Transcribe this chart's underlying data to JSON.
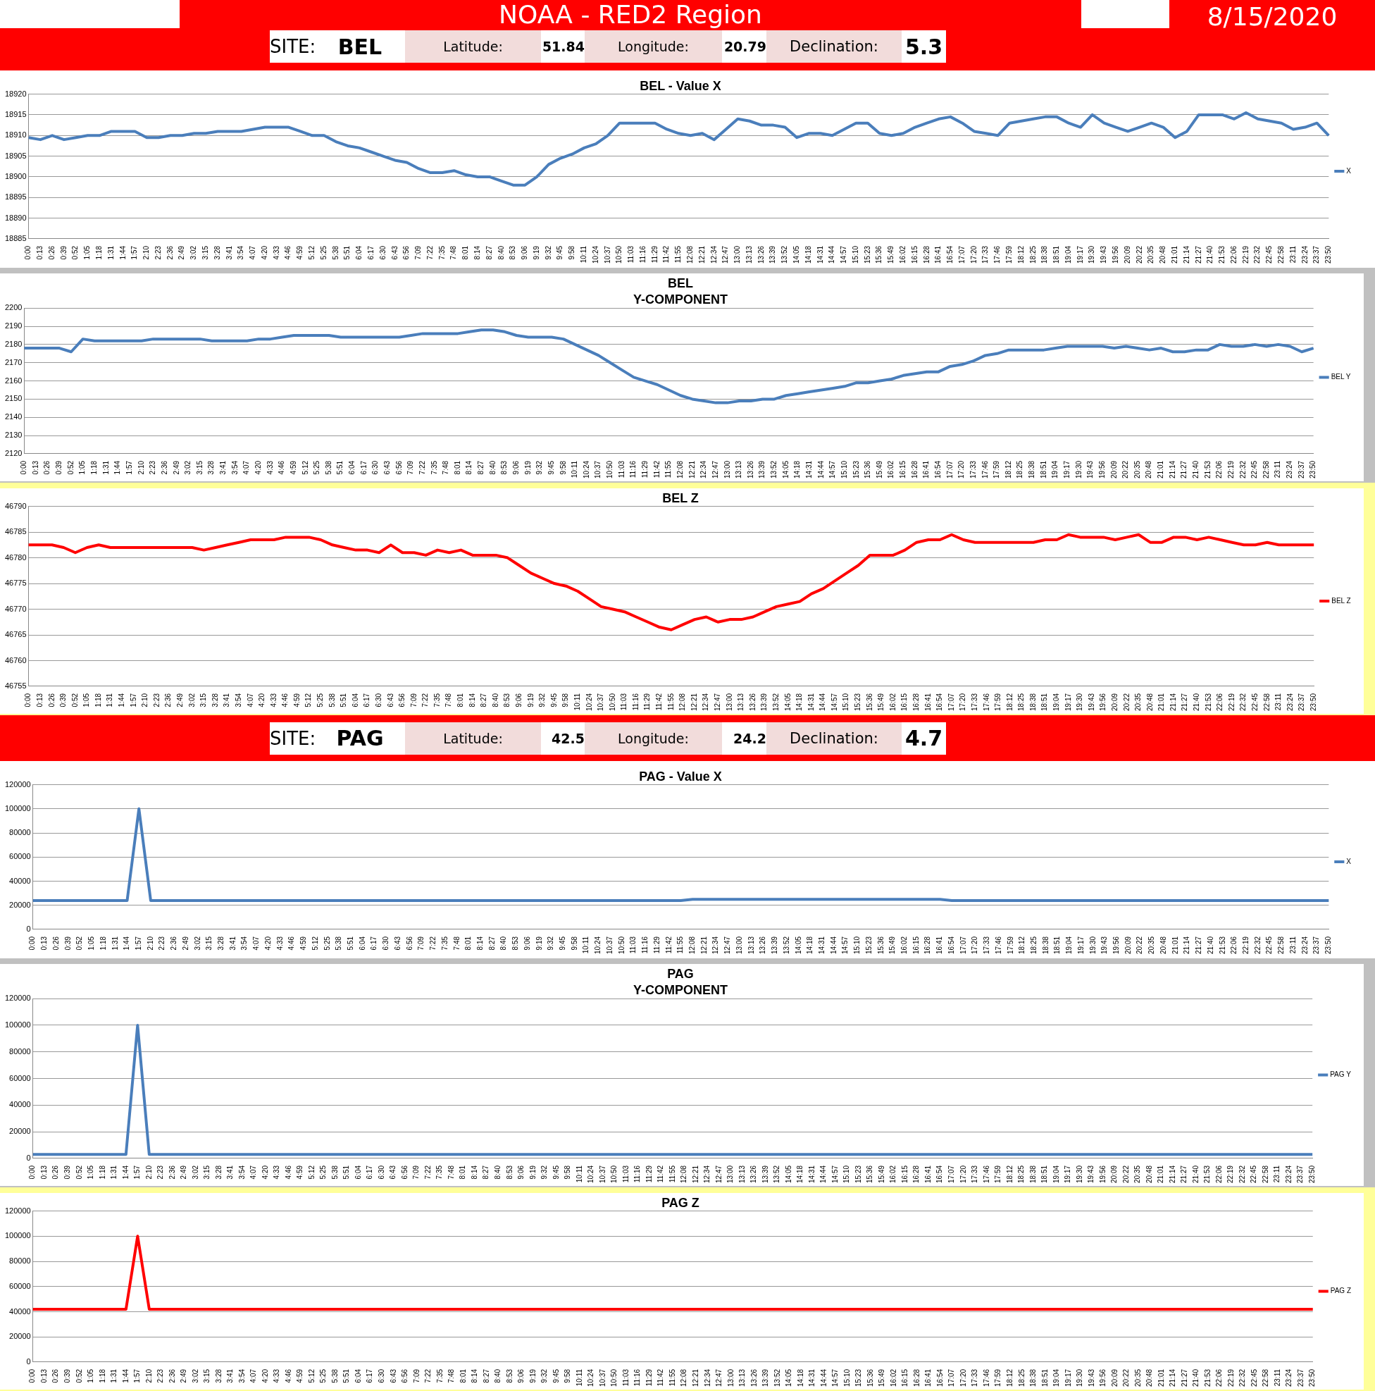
{
  "chart_data": [
    {
      "type": "other",
      "title": "NOAA - RED2 Region",
      "annotations": [
        "8/15/2020",
        "SITE:",
        "BEL",
        "Latitude:",
        "51.84",
        "Longitude:",
        "20.79",
        "Declination:",
        "5.3"
      ]
    },
    {
      "type": "line",
      "title": "BEL - Value X",
      "categories": [
        "0:00",
        "0:13",
        "0:26",
        "0:39",
        "0:52",
        "1:05",
        "1:18",
        "1:31",
        "1:44",
        "1:57",
        "2:10",
        "2:23",
        "2:36",
        "2:49",
        "3:02",
        "3:15",
        "3:28",
        "3:41",
        "3:54",
        "4:07",
        "4:20",
        "4:33",
        "4:46",
        "4:59",
        "5:12",
        "5:25",
        "5:38",
        "5:51",
        "6:04",
        "6:17",
        "6:30",
        "6:43",
        "6:56",
        "7:09",
        "7:22",
        "7:35",
        "7:48",
        "8:01",
        "8:14",
        "8:27",
        "8:40",
        "8:53",
        "9:06",
        "9:19",
        "9:32",
        "9:45",
        "9:58",
        "10:11",
        "10:24",
        "10:37",
        "10:50",
        "11:03",
        "11:16",
        "11:29",
        "11:42",
        "11:55",
        "12:08",
        "12:21",
        "12:34",
        "12:47",
        "13:00",
        "13:13",
        "13:26",
        "13:39",
        "13:52",
        "14:05",
        "14:18",
        "14:31",
        "14:44",
        "14:57",
        "15:10",
        "15:23",
        "15:36",
        "15:49",
        "16:02",
        "16:15",
        "16:28",
        "16:41",
        "16:54",
        "17:07",
        "17:20",
        "17:33",
        "17:46",
        "17:59",
        "18:12",
        "18:25",
        "18:38",
        "18:51",
        "19:04",
        "19:17",
        "19:30",
        "19:43",
        "19:56",
        "20:09",
        "20:22",
        "20:35",
        "20:48",
        "21:01",
        "21:14",
        "21:27",
        "21:40",
        "21:53",
        "22:06",
        "22:19",
        "22:32",
        "22:45",
        "22:58",
        "23:11",
        "23:24",
        "23:37",
        "23:50"
      ],
      "series": [
        {
          "name": "X",
          "color": "#4a7ebb",
          "values": [
            18909.5,
            18909,
            18910,
            18909,
            18909.5,
            18910,
            18910,
            18911,
            18911,
            18911,
            18909.5,
            18909.5,
            18910,
            18910,
            18910.5,
            18910.5,
            18911,
            18911,
            18911,
            18911.5,
            18912,
            18912,
            18912,
            18911,
            18910,
            18910,
            18908.5,
            18907.5,
            18907,
            18906,
            18905,
            18904,
            18903.5,
            18902,
            18901,
            18901,
            18901.5,
            18900.5,
            18900,
            18900,
            18899,
            18898,
            18898,
            18900,
            18903,
            18904.5,
            18905.5,
            18907,
            18908,
            18910,
            18913,
            18913,
            18913,
            18913,
            18911.5,
            18910.5,
            18910,
            18910.5,
            18909,
            18911.5,
            18914,
            18913.5,
            18912.5,
            18912.5,
            18912,
            18909.5,
            18910.5,
            18910.5,
            18910,
            18911.5,
            18913,
            18913,
            18910.5,
            18910,
            18910.5,
            18912,
            18913,
            18914,
            18914.5,
            18913,
            18911,
            18910.5,
            18910,
            18913,
            18913.5,
            18914,
            18914.5,
            18914.5,
            18913,
            18912,
            18915,
            18913,
            18912,
            18911,
            18912,
            18913,
            18912,
            18909.5,
            18911,
            18915,
            18915,
            18915,
            18914,
            18915.5,
            18914,
            18913.5,
            18913,
            18911.5,
            18912,
            18913,
            18910
          ]
        }
      ],
      "ylim": [
        18885,
        18920
      ],
      "yticks": [
        18885,
        18890,
        18895,
        18900,
        18905,
        18910,
        18915,
        18920
      ],
      "grid": "y",
      "legend": "right",
      "marker": "none",
      "line_style": "solid"
    },
    {
      "type": "line",
      "title": "BEL",
      "subtitle": "Y-COMPONENT",
      "categories": [
        "0:00",
        "0:13",
        "0:26",
        "0:39",
        "0:52",
        "1:05",
        "1:18",
        "1:31",
        "1:44",
        "1:57",
        "2:10",
        "2:23",
        "2:36",
        "2:49",
        "3:02",
        "3:15",
        "3:28",
        "3:41",
        "3:54",
        "4:07",
        "4:20",
        "4:33",
        "4:46",
        "4:59",
        "5:12",
        "5:25",
        "5:38",
        "5:51",
        "6:04",
        "6:17",
        "6:30",
        "6:43",
        "6:56",
        "7:09",
        "7:22",
        "7:35",
        "7:48",
        "8:01",
        "8:14",
        "8:27",
        "8:40",
        "8:53",
        "9:06",
        "9:19",
        "9:32",
        "9:45",
        "9:58",
        "10:11",
        "10:24",
        "10:37",
        "10:50",
        "11:03",
        "11:16",
        "11:29",
        "11:42",
        "11:55",
        "12:08",
        "12:21",
        "12:34",
        "12:47",
        "13:00",
        "13:13",
        "13:26",
        "13:39",
        "13:52",
        "14:05",
        "14:18",
        "14:31",
        "14:44",
        "14:57",
        "15:10",
        "15:23",
        "15:36",
        "15:49",
        "16:02",
        "16:15",
        "16:28",
        "16:41",
        "16:54",
        "17:07",
        "17:20",
        "17:33",
        "17:46",
        "17:59",
        "18:12",
        "18:25",
        "18:38",
        "18:51",
        "19:04",
        "19:17",
        "19:30",
        "19:43",
        "19:56",
        "20:09",
        "20:22",
        "20:35",
        "20:48",
        "21:01",
        "21:14",
        "21:27",
        "21:40",
        "21:53",
        "22:06",
        "22:19",
        "22:32",
        "22:45",
        "22:58",
        "23:11",
        "23:24",
        "23:37",
        "23:50"
      ],
      "series": [
        {
          "name": "BEL Y",
          "color": "#4a7ebb",
          "values": [
            2178,
            2178,
            2178,
            2178,
            2176,
            2183,
            2182,
            2182,
            2182,
            2182,
            2182,
            2183,
            2183,
            2183,
            2183,
            2183,
            2182,
            2182,
            2182,
            2182,
            2183,
            2183,
            2184,
            2185,
            2185,
            2185,
            2185,
            2184,
            2184,
            2184,
            2184,
            2184,
            2184,
            2185,
            2186,
            2186,
            2186,
            2186,
            2187,
            2188,
            2188,
            2187,
            2185,
            2184,
            2184,
            2184,
            2183,
            2180,
            2177,
            2174,
            2170,
            2166,
            2162,
            2160,
            2158,
            2155,
            2152,
            2150,
            2149,
            2148,
            2148,
            2149,
            2149,
            2150,
            2150,
            2152,
            2153,
            2154,
            2155,
            2156,
            2157,
            2159,
            2159,
            2160,
            2161,
            2163,
            2164,
            2165,
            2165,
            2168,
            2169,
            2171,
            2174,
            2175,
            2177,
            2177,
            2177,
            2177,
            2178,
            2179,
            2179,
            2179,
            2179,
            2178,
            2179,
            2178,
            2177,
            2178,
            2176,
            2176,
            2177,
            2177,
            2180,
            2179,
            2179,
            2180,
            2179,
            2180,
            2179,
            2176,
            2178
          ]
        }
      ],
      "ylim": [
        2120,
        2200
      ],
      "yticks": [
        2120,
        2130,
        2140,
        2150,
        2160,
        2170,
        2180,
        2190,
        2200
      ],
      "grid": "y",
      "legend": "right",
      "marker": "none",
      "line_style": "solid"
    },
    {
      "type": "line",
      "title": "BEL Z",
      "categories": [
        "0:00",
        "0:13",
        "0:26",
        "0:39",
        "0:52",
        "1:05",
        "1:18",
        "1:31",
        "1:44",
        "1:57",
        "2:10",
        "2:23",
        "2:36",
        "2:49",
        "3:02",
        "3:15",
        "3:28",
        "3:41",
        "3:54",
        "4:07",
        "4:20",
        "4:33",
        "4:46",
        "4:59",
        "5:12",
        "5:25",
        "5:38",
        "5:51",
        "6:04",
        "6:17",
        "6:30",
        "6:43",
        "6:56",
        "7:09",
        "7:22",
        "7:35",
        "7:48",
        "8:01",
        "8:14",
        "8:27",
        "8:40",
        "8:53",
        "9:06",
        "9:19",
        "9:32",
        "9:45",
        "9:58",
        "10:11",
        "10:24",
        "10:37",
        "10:50",
        "11:03",
        "11:16",
        "11:29",
        "11:42",
        "11:55",
        "12:08",
        "12:21",
        "12:34",
        "12:47",
        "13:00",
        "13:13",
        "13:26",
        "13:39",
        "13:52",
        "14:05",
        "14:18",
        "14:31",
        "14:44",
        "14:57",
        "15:10",
        "15:23",
        "15:36",
        "15:49",
        "16:02",
        "16:15",
        "16:28",
        "16:41",
        "16:54",
        "17:07",
        "17:20",
        "17:33",
        "17:46",
        "17:59",
        "18:12",
        "18:25",
        "18:38",
        "18:51",
        "19:04",
        "19:17",
        "19:30",
        "19:43",
        "19:56",
        "20:09",
        "20:22",
        "20:35",
        "20:48",
        "21:01",
        "21:14",
        "21:27",
        "21:40",
        "21:53",
        "22:06",
        "22:19",
        "22:32",
        "22:45",
        "22:58",
        "23:11",
        "23:24",
        "23:37",
        "23:50"
      ],
      "series": [
        {
          "name": "BEL Z",
          "color": "#ff0000",
          "values": [
            46782.5,
            46782.5,
            46782.5,
            46782,
            46781,
            46782,
            46782.5,
            46782,
            46782,
            46782,
            46782,
            46782,
            46782,
            46782,
            46782,
            46781.5,
            46782,
            46782.5,
            46783,
            46783.5,
            46783.5,
            46783.5,
            46784,
            46784,
            46784,
            46783.5,
            46782.5,
            46782,
            46781.5,
            46781.5,
            46781,
            46782.5,
            46781,
            46781,
            46780.5,
            46781.5,
            46781,
            46781.5,
            46780.5,
            46780.5,
            46780.5,
            46780,
            46778.5,
            46777,
            46776,
            46775,
            46774.5,
            46773.5,
            46772,
            46770.5,
            46770,
            46769.5,
            46768.5,
            46767.5,
            46766.5,
            46766,
            46767,
            46768,
            46768.5,
            46767.5,
            46768,
            46768,
            46768.5,
            46769.5,
            46770.5,
            46771,
            46771.5,
            46773,
            46774,
            46775.5,
            46777,
            46778.5,
            46780.5,
            46780.5,
            46780.5,
            46781.5,
            46783,
            46783.5,
            46783.5,
            46784.5,
            46783.5,
            46783,
            46783,
            46783,
            46783,
            46783,
            46783,
            46783.5,
            46783.5,
            46784.5,
            46784,
            46784,
            46784,
            46783.5,
            46784,
            46784.5,
            46783,
            46783,
            46784,
            46784,
            46783.5,
            46784,
            46783.5,
            46783,
            46782.5,
            46782.5,
            46783,
            46782.5,
            46782.5,
            46782.5,
            46782.5
          ]
        }
      ],
      "ylim": [
        46755,
        46790
      ],
      "yticks": [
        46755,
        46760,
        46765,
        46770,
        46775,
        46780,
        46785,
        46790
      ],
      "grid": "y",
      "legend": "right",
      "marker": "none",
      "line_style": "solid"
    },
    {
      "type": "other",
      "annotations": [
        "SITE:",
        "PAG",
        "Latitude:",
        "42.5",
        "Longitude:",
        "24.2",
        "Declination:",
        "4.7"
      ]
    },
    {
      "type": "line",
      "title": "PAG - Value X",
      "categories": [
        "0:00",
        "0:13",
        "0:26",
        "0:39",
        "0:52",
        "1:05",
        "1:18",
        "1:31",
        "1:44",
        "1:57",
        "2:10",
        "2:23",
        "2:36",
        "2:49",
        "3:02",
        "3:15",
        "3:28",
        "3:41",
        "3:54",
        "4:07",
        "4:20",
        "4:33",
        "4:46",
        "4:59",
        "5:12",
        "5:25",
        "5:38",
        "5:51",
        "6:04",
        "6:17",
        "6:30",
        "6:43",
        "6:56",
        "7:09",
        "7:22",
        "7:35",
        "7:48",
        "8:01",
        "8:14",
        "8:27",
        "8:40",
        "8:53",
        "9:06",
        "9:19",
        "9:32",
        "9:45",
        "9:58",
        "10:11",
        "10:24",
        "10:37",
        "10:50",
        "11:03",
        "11:16",
        "11:29",
        "11:42",
        "11:55",
        "12:08",
        "12:21",
        "12:34",
        "12:47",
        "13:00",
        "13:13",
        "13:26",
        "13:39",
        "13:52",
        "14:05",
        "14:18",
        "14:31",
        "14:44",
        "14:57",
        "15:10",
        "15:23",
        "15:36",
        "15:49",
        "16:02",
        "16:15",
        "16:28",
        "16:41",
        "16:54",
        "17:07",
        "17:20",
        "17:33",
        "17:46",
        "17:59",
        "18:12",
        "18:25",
        "18:38",
        "18:51",
        "19:04",
        "19:17",
        "19:30",
        "19:43",
        "19:56",
        "20:09",
        "20:22",
        "20:35",
        "20:48",
        "21:01",
        "21:14",
        "21:27",
        "21:40",
        "21:53",
        "22:06",
        "22:19",
        "22:32",
        "22:45",
        "22:58",
        "23:11",
        "23:24",
        "23:37",
        "23:50"
      ],
      "series": [
        {
          "name": "X",
          "color": "#4a7ebb",
          "values": [
            24000,
            24000,
            24000,
            24000,
            24000,
            24000,
            24000,
            24000,
            24000,
            100000,
            24000,
            24000,
            24000,
            24000,
            24000,
            24000,
            24000,
            24000,
            24000,
            24000,
            24000,
            24000,
            24000,
            24000,
            24000,
            24000,
            24000,
            24000,
            24000,
            24000,
            24000,
            24000,
            24000,
            24000,
            24000,
            24000,
            24000,
            24000,
            24000,
            24000,
            24000,
            24000,
            24000,
            24000,
            24000,
            24000,
            24000,
            24000,
            24000,
            24000,
            24000,
            24000,
            24000,
            24000,
            24000,
            24000,
            25000,
            25000,
            25000,
            25000,
            25000,
            25000,
            25000,
            25000,
            25000,
            25000,
            25000,
            25000,
            25000,
            25000,
            25000,
            25000,
            25000,
            25000,
            25000,
            25000,
            25000,
            25000,
            24000,
            24000,
            24000,
            24000,
            24000,
            24000,
            24000,
            24000,
            24000,
            24000,
            24000,
            24000,
            24000,
            24000,
            24000,
            24000,
            24000,
            24000,
            24000,
            24000,
            24000,
            24000,
            24000,
            24000,
            24000,
            24000,
            24000,
            24000,
            24000,
            24000,
            24000,
            24000,
            24000
          ]
        }
      ],
      "ylim": [
        0,
        120000
      ],
      "yticks": [
        0,
        20000,
        40000,
        60000,
        80000,
        100000,
        120000
      ],
      "grid": "y",
      "legend": "right",
      "marker": "none",
      "line_style": "solid"
    },
    {
      "type": "line",
      "title": "PAG",
      "subtitle": "Y-COMPONENT",
      "categories": [
        "0:00",
        "0:13",
        "0:26",
        "0:39",
        "0:52",
        "1:05",
        "1:18",
        "1:31",
        "1:44",
        "1:57",
        "2:10",
        "2:23",
        "2:36",
        "2:49",
        "3:02",
        "3:15",
        "3:28",
        "3:41",
        "3:54",
        "4:07",
        "4:20",
        "4:33",
        "4:46",
        "4:59",
        "5:12",
        "5:25",
        "5:38",
        "5:51",
        "6:04",
        "6:17",
        "6:30",
        "6:43",
        "6:56",
        "7:09",
        "7:22",
        "7:35",
        "7:48",
        "8:01",
        "8:14",
        "8:27",
        "8:40",
        "8:53",
        "9:06",
        "9:19",
        "9:32",
        "9:45",
        "9:58",
        "10:11",
        "10:24",
        "10:37",
        "10:50",
        "11:03",
        "11:16",
        "11:29",
        "11:42",
        "11:55",
        "12:08",
        "12:21",
        "12:34",
        "12:47",
        "13:00",
        "13:13",
        "13:26",
        "13:39",
        "13:52",
        "14:05",
        "14:18",
        "14:31",
        "14:44",
        "14:57",
        "15:10",
        "15:23",
        "15:36",
        "15:49",
        "16:02",
        "16:15",
        "16:28",
        "16:41",
        "16:54",
        "17:07",
        "17:20",
        "17:33",
        "17:46",
        "17:59",
        "18:12",
        "18:25",
        "18:38",
        "18:51",
        "19:04",
        "19:17",
        "19:30",
        "19:43",
        "19:56",
        "20:09",
        "20:22",
        "20:35",
        "20:48",
        "21:01",
        "21:14",
        "21:27",
        "21:40",
        "21:53",
        "22:06",
        "22:19",
        "22:32",
        "22:45",
        "22:58",
        "23:11",
        "23:24",
        "23:37",
        "23:50"
      ],
      "series": [
        {
          "name": "PAG Y",
          "color": "#4a7ebb",
          "values": [
            3000,
            3000,
            3000,
            3000,
            3000,
            3000,
            3000,
            3000,
            3000,
            100000,
            3000,
            3000,
            3000,
            3000,
            3000,
            3000,
            3000,
            3000,
            3000,
            3000,
            3000,
            3000,
            3000,
            3000,
            3000,
            3000,
            3000,
            3000,
            3000,
            3000,
            3000,
            3000,
            3000,
            3000,
            3000,
            3000,
            3000,
            3000,
            3000,
            3000,
            3000,
            3000,
            3000,
            3000,
            3000,
            3000,
            3000,
            3000,
            3000,
            3000,
            3000,
            3000,
            3000,
            3000,
            3000,
            3000,
            3000,
            3000,
            3000,
            3000,
            3000,
            3000,
            3000,
            3000,
            3000,
            3000,
            3000,
            3000,
            3000,
            3000,
            3000,
            3000,
            3000,
            3000,
            3000,
            3000,
            3000,
            3000,
            3000,
            3000,
            3000,
            3000,
            3000,
            3000,
            3000,
            3000,
            3000,
            3000,
            3000,
            3000,
            3000,
            3000,
            3000,
            3000,
            3000,
            3000,
            3000,
            3000,
            3000,
            3000,
            3000,
            3000,
            3000,
            3000,
            3000,
            3000,
            3000,
            3000,
            3000,
            3000,
            3000
          ]
        }
      ],
      "ylim": [
        0,
        120000
      ],
      "yticks": [
        0,
        20000,
        40000,
        60000,
        80000,
        100000,
        120000
      ],
      "grid": "y",
      "legend": "right",
      "marker": "none",
      "line_style": "solid"
    },
    {
      "type": "line",
      "title": "PAG Z",
      "categories": [
        "0:00",
        "0:13",
        "0:26",
        "0:39",
        "0:52",
        "1:05",
        "1:18",
        "1:31",
        "1:44",
        "1:57",
        "2:10",
        "2:23",
        "2:36",
        "2:49",
        "3:02",
        "3:15",
        "3:28",
        "3:41",
        "3:54",
        "4:07",
        "4:20",
        "4:33",
        "4:46",
        "4:59",
        "5:12",
        "5:25",
        "5:38",
        "5:51",
        "6:04",
        "6:17",
        "6:30",
        "6:43",
        "6:56",
        "7:09",
        "7:22",
        "7:35",
        "7:48",
        "8:01",
        "8:14",
        "8:27",
        "8:40",
        "8:53",
        "9:06",
        "9:19",
        "9:32",
        "9:45",
        "9:58",
        "10:11",
        "10:24",
        "10:37",
        "10:50",
        "11:03",
        "11:16",
        "11:29",
        "11:42",
        "11:55",
        "12:08",
        "12:21",
        "12:34",
        "12:47",
        "13:00",
        "13:13",
        "13:26",
        "13:39",
        "13:52",
        "14:05",
        "14:18",
        "14:31",
        "14:44",
        "14:57",
        "15:10",
        "15:23",
        "15:36",
        "15:49",
        "16:02",
        "16:15",
        "16:28",
        "16:41",
        "16:54",
        "17:07",
        "17:20",
        "17:33",
        "17:46",
        "17:59",
        "18:12",
        "18:25",
        "18:38",
        "18:51",
        "19:04",
        "19:17",
        "19:30",
        "19:43",
        "19:56",
        "20:09",
        "20:22",
        "20:35",
        "20:48",
        "21:01",
        "21:14",
        "21:27",
        "21:40",
        "21:53",
        "22:06",
        "22:19",
        "22:32",
        "22:45",
        "22:58",
        "23:11",
        "23:24",
        "23:37",
        "23:50"
      ],
      "series": [
        {
          "name": "PAG Z",
          "color": "#ff0000",
          "values": [
            42000,
            42000,
            42000,
            42000,
            42000,
            42000,
            42000,
            42000,
            42000,
            100000,
            42000,
            42000,
            42000,
            42000,
            42000,
            42000,
            42000,
            42000,
            42000,
            42000,
            42000,
            42000,
            42000,
            42000,
            42000,
            42000,
            42000,
            42000,
            42000,
            42000,
            42000,
            42000,
            42000,
            42000,
            42000,
            42000,
            42000,
            42000,
            42000,
            42000,
            42000,
            42000,
            42000,
            42000,
            42000,
            42000,
            42000,
            42000,
            42000,
            42000,
            42000,
            42000,
            42000,
            42000,
            42000,
            42000,
            42000,
            42000,
            42000,
            42000,
            42000,
            42000,
            42000,
            42000,
            42000,
            42000,
            42000,
            42000,
            42000,
            42000,
            42000,
            42000,
            42000,
            42000,
            42000,
            42000,
            42000,
            42000,
            42000,
            42000,
            42000,
            42000,
            42000,
            42000,
            42000,
            42000,
            42000,
            42000,
            42000,
            42000,
            42000,
            42000,
            42000,
            42000,
            42000,
            42000,
            42000,
            42000,
            42000,
            42000,
            42000,
            42000,
            42000,
            42000,
            42000,
            42000,
            42000,
            42000,
            42000,
            42000,
            42000
          ]
        }
      ],
      "ylim": [
        0,
        120000
      ],
      "yticks": [
        0,
        20000,
        40000,
        60000,
        80000,
        100000,
        120000
      ],
      "grid": "y",
      "legend": "right",
      "marker": "none",
      "line_style": "solid"
    }
  ]
}
